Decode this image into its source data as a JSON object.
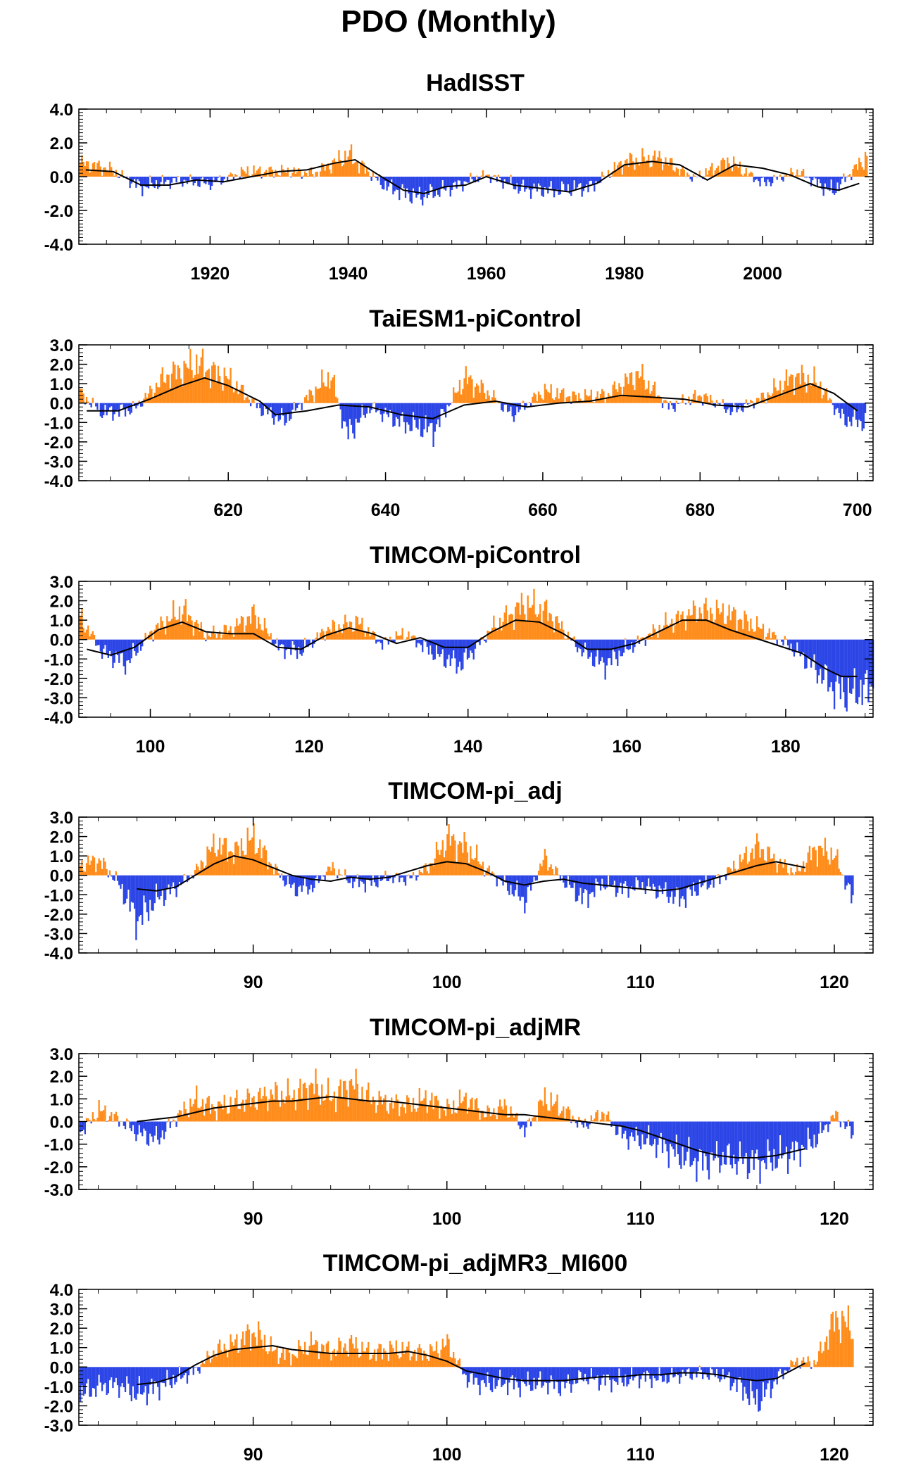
{
  "title": "PDO (Monthly)",
  "colors": {
    "positive": "#ff8c1a",
    "negative": "#2b45e6",
    "smooth": "#000000"
  },
  "chart_data": [
    {
      "type": "area",
      "title": "HadISST",
      "xlim": [
        1901,
        2016
      ],
      "xticks": [
        1920,
        1940,
        1960,
        1980,
        2000
      ],
      "yticks": [
        "4.0",
        "2.0",
        "0.0",
        "-2.0",
        "-4.0"
      ],
      "ylim": [
        -4,
        4
      ],
      "series": [
        {
          "values_x": [
            1901,
            1905,
            1910,
            1915,
            1920,
            1925,
            1930,
            1935,
            1940,
            1945,
            1950,
            1955,
            1960,
            1965,
            1970,
            1975,
            1980,
            1985,
            1990,
            1995,
            2000,
            2005,
            2010,
            2015
          ],
          "values_y": [
            0.8,
            0.5,
            -0.6,
            -0.2,
            -0.4,
            0.3,
            0.3,
            0.2,
            1.3,
            -0.5,
            -1.2,
            -0.6,
            0.1,
            -0.7,
            -0.8,
            -0.6,
            0.9,
            1.1,
            -0.1,
            0.9,
            -0.4,
            0.3,
            -0.9,
            1.2
          ]
        },
        {
          "values_x": [
            1902,
            1906,
            1910,
            1914,
            1918,
            1922,
            1926,
            1930,
            1934,
            1938,
            1941,
            1944,
            1948,
            1951,
            1954,
            1957,
            1960,
            1964,
            1968,
            1972,
            1976,
            1980,
            1984,
            1988,
            1992,
            1996,
            2000,
            2004,
            2008,
            2011,
            2014
          ],
          "values_y": [
            0.4,
            0.3,
            -0.5,
            -0.5,
            -0.2,
            -0.3,
            0.0,
            0.3,
            0.4,
            0.8,
            1.0,
            0.2,
            -0.8,
            -1.0,
            -0.6,
            -0.5,
            0.0,
            -0.5,
            -0.7,
            -0.9,
            -0.4,
            0.7,
            0.9,
            0.7,
            -0.2,
            0.7,
            0.5,
            0.1,
            -0.6,
            -0.8,
            -0.4
          ]
        }
      ]
    },
    {
      "type": "area",
      "title": "TaiESM1-piControl",
      "xlim": [
        601,
        702
      ],
      "xticks": [
        620,
        640,
        660,
        680,
        700
      ],
      "yticks": [
        "3.0",
        "2.0",
        "1.0",
        "0.0",
        "-1.0",
        "-2.0",
        "-3.0",
        "-4.0"
      ],
      "ylim": [
        -4,
        3
      ],
      "series": [
        {
          "values_x": [
            601,
            604,
            608,
            612,
            616,
            620,
            624,
            627,
            630,
            633,
            635,
            638,
            642,
            646,
            650,
            653,
            656,
            660,
            664,
            668,
            672,
            676,
            680,
            684,
            688,
            692,
            695,
            698,
            701
          ],
          "values_y": [
            0.5,
            -0.5,
            -0.3,
            1.4,
            2.0,
            1.2,
            -0.3,
            -0.9,
            0.3,
            1.4,
            -1.6,
            -0.2,
            -1.0,
            -1.4,
            1.3,
            0.5,
            -0.6,
            0.6,
            0.3,
            0.4,
            1.5,
            -0.2,
            0.4,
            -0.4,
            0.3,
            1.4,
            1.0,
            -0.8,
            -1.0
          ]
        },
        {
          "values_x": [
            602,
            606,
            610,
            614,
            617,
            620,
            624,
            626,
            630,
            634,
            638,
            642,
            646,
            650,
            654,
            658,
            662,
            666,
            670,
            674,
            678,
            682,
            686,
            690,
            694,
            697,
            700
          ],
          "values_y": [
            -0.4,
            -0.4,
            0.2,
            0.9,
            1.3,
            0.9,
            0.1,
            -0.6,
            -0.4,
            -0.1,
            -0.2,
            -0.6,
            -0.8,
            -0.1,
            0.1,
            -0.2,
            0.0,
            0.1,
            0.4,
            0.3,
            0.2,
            -0.1,
            -0.2,
            0.4,
            1.0,
            0.5,
            -0.4
          ]
        }
      ]
    },
    {
      "type": "area",
      "title": "TIMCOM-piControl",
      "xlim": [
        91,
        191
      ],
      "xticks": [
        100,
        120,
        140,
        160,
        180
      ],
      "yticks": [
        "3.0",
        "2.0",
        "1.0",
        "0.0",
        "-1.0",
        "-2.0",
        "-3.0",
        "-4.0"
      ],
      "ylim": [
        -4,
        3
      ],
      "series": [
        {
          "values_x": [
            91,
            94,
            97,
            100,
            104,
            107,
            110,
            113,
            116,
            119,
            122,
            126,
            129,
            132,
            136,
            139,
            143,
            147,
            150,
            154,
            157,
            161,
            165,
            169,
            173,
            177,
            180,
            183,
            186,
            188,
            191
          ],
          "values_y": [
            1.2,
            -0.7,
            -1.2,
            0.4,
            1.5,
            0.2,
            0.5,
            1.3,
            -0.4,
            -0.6,
            0.5,
            0.9,
            -0.2,
            0.3,
            -0.8,
            -1.3,
            0.6,
            1.8,
            1.4,
            -0.5,
            -1.3,
            -0.2,
            0.8,
            1.5,
            1.3,
            0.5,
            -0.2,
            -1.2,
            -2.5,
            -2.8,
            -2.3
          ]
        },
        {
          "values_x": [
            92,
            95,
            98,
            101,
            104,
            107,
            110,
            113,
            116,
            119,
            122,
            125,
            128,
            131,
            134,
            137,
            140,
            143,
            146,
            149,
            152,
            155,
            158,
            161,
            164,
            167,
            170,
            173,
            176,
            179,
            182,
            185,
            187,
            189
          ],
          "values_y": [
            -0.5,
            -0.8,
            -0.4,
            0.5,
            0.9,
            0.4,
            0.3,
            0.3,
            -0.4,
            -0.5,
            0.2,
            0.6,
            0.3,
            -0.2,
            0.1,
            -0.4,
            -0.4,
            0.4,
            1.0,
            0.9,
            0.3,
            -0.5,
            -0.5,
            -0.2,
            0.4,
            1.0,
            1.0,
            0.5,
            0.1,
            -0.3,
            -0.7,
            -1.5,
            -1.9,
            -1.9
          ]
        }
      ]
    },
    {
      "type": "area",
      "title": "TIMCOM-pi_adj",
      "xlim": [
        81,
        122
      ],
      "xticks": [
        90,
        100,
        110,
        120
      ],
      "yticks": [
        "3.0",
        "2.0",
        "1.0",
        "0.0",
        "-1.0",
        "-2.0",
        "-3.0",
        "-4.0"
      ],
      "ylim": [
        -4,
        3
      ],
      "series": [
        {
          "values_x": [
            81,
            82,
            83,
            84,
            85,
            86,
            87,
            88,
            89,
            90,
            91,
            92,
            93,
            94,
            95,
            96,
            97,
            98,
            99,
            100,
            101,
            102,
            103,
            104,
            105,
            106,
            107,
            108,
            109,
            110,
            111,
            112,
            113,
            114,
            115,
            116,
            117,
            118,
            119,
            120,
            121
          ],
          "values_y": [
            0.5,
            0.8,
            -0.4,
            -2.3,
            -1.2,
            -0.6,
            0.2,
            1.6,
            1.2,
            1.9,
            0.4,
            -0.7,
            -0.6,
            0.4,
            -0.3,
            -0.4,
            -0.1,
            -0.2,
            0.4,
            1.9,
            1.4,
            0.3,
            -0.5,
            -1.3,
            0.9,
            -0.3,
            -1.2,
            -0.4,
            -0.7,
            -0.5,
            -0.8,
            -1.2,
            -0.6,
            -0.2,
            0.6,
            1.5,
            0.7,
            0.1,
            1.4,
            1.0,
            -1.5
          ]
        },
        {
          "values_x": [
            84,
            85,
            86,
            87,
            88,
            89,
            90,
            91,
            92,
            93,
            94,
            95,
            96,
            97,
            98,
            99,
            100,
            101,
            102,
            103,
            104,
            105,
            106,
            107,
            108,
            109,
            110,
            111,
            112,
            113,
            114,
            115,
            116,
            117,
            118.5
          ],
          "values_y": [
            -0.7,
            -0.8,
            -0.6,
            0.0,
            0.6,
            1.0,
            0.8,
            0.4,
            0.0,
            -0.2,
            -0.3,
            -0.1,
            -0.2,
            -0.1,
            0.2,
            0.5,
            0.7,
            0.6,
            0.2,
            -0.3,
            -0.5,
            -0.3,
            -0.2,
            -0.4,
            -0.5,
            -0.6,
            -0.7,
            -0.8,
            -0.7,
            -0.4,
            -0.1,
            0.2,
            0.5,
            0.7,
            0.4
          ]
        }
      ]
    },
    {
      "type": "area",
      "title": "TIMCOM-pi_adjMR",
      "xlim": [
        81,
        122
      ],
      "xticks": [
        90,
        100,
        110,
        120
      ],
      "yticks": [
        "3.0",
        "2.0",
        "1.0",
        "0.0",
        "-1.0",
        "-2.0",
        "-3.0"
      ],
      "ylim": [
        -3,
        3
      ],
      "series": [
        {
          "values_x": [
            81,
            82,
            83,
            84,
            85,
            86,
            87,
            88,
            89,
            90,
            91,
            92,
            93,
            94,
            95,
            96,
            97,
            98,
            99,
            100,
            101,
            102,
            103,
            104,
            105,
            106,
            107,
            108,
            109,
            110,
            111,
            112,
            113,
            114,
            115,
            116,
            117,
            118,
            119,
            120,
            121
          ],
          "values_y": [
            -0.5,
            0.5,
            0.1,
            -0.5,
            -0.8,
            0.2,
            0.9,
            0.6,
            0.8,
            1.0,
            1.2,
            1.1,
            1.6,
            1.0,
            1.7,
            1.0,
            0.8,
            0.7,
            1.0,
            0.5,
            1.0,
            0.3,
            0.7,
            -0.4,
            1.0,
            0.5,
            -0.2,
            0.4,
            -0.6,
            -0.8,
            -1.0,
            -1.5,
            -1.8,
            -1.6,
            -1.7,
            -1.8,
            -1.6,
            -1.3,
            -0.8,
            0.3,
            -0.6
          ]
        },
        {
          "values_x": [
            84,
            85,
            86,
            87,
            88,
            89,
            90,
            91,
            92,
            93,
            94,
            95,
            96,
            97,
            98,
            99,
            100,
            101,
            102,
            103,
            104,
            105,
            106,
            107,
            108,
            109,
            110,
            111,
            112,
            113,
            114,
            115,
            116,
            117,
            118.5
          ],
          "values_y": [
            0.0,
            0.1,
            0.2,
            0.4,
            0.6,
            0.7,
            0.8,
            0.9,
            0.9,
            1.0,
            1.1,
            1.0,
            0.9,
            0.9,
            0.8,
            0.7,
            0.6,
            0.5,
            0.4,
            0.3,
            0.3,
            0.2,
            0.1,
            0.0,
            -0.1,
            -0.2,
            -0.4,
            -0.7,
            -1.0,
            -1.3,
            -1.5,
            -1.6,
            -1.6,
            -1.5,
            -1.2
          ]
        }
      ]
    },
    {
      "type": "area",
      "title": "TIMCOM-pi_adjMR3_MI600",
      "xlim": [
        81,
        122
      ],
      "xticks": [
        90,
        100,
        110,
        120
      ],
      "yticks": [
        "4.0",
        "3.0",
        "2.0",
        "1.0",
        "0.0",
        "-1.0",
        "-2.0",
        "-3.0"
      ],
      "ylim": [
        -3,
        4
      ],
      "series": [
        {
          "values_x": [
            81,
            82,
            83,
            84,
            85,
            86,
            87,
            88,
            89,
            90,
            91,
            92,
            93,
            94,
            95,
            96,
            97,
            98,
            99,
            100,
            101,
            102,
            103,
            104,
            105,
            106,
            107,
            108,
            109,
            110,
            111,
            112,
            113,
            114,
            115,
            116,
            117,
            118,
            119,
            120,
            121
          ],
          "values_y": [
            -1.4,
            -1.0,
            -0.9,
            -1.4,
            -1.0,
            -0.6,
            -0.2,
            0.8,
            1.2,
            1.8,
            0.8,
            0.6,
            1.2,
            0.8,
            1.2,
            0.7,
            0.9,
            0.8,
            0.7,
            1.2,
            -0.6,
            -0.9,
            -0.8,
            -0.9,
            -0.8,
            -1.0,
            -0.5,
            -0.7,
            -0.7,
            -0.5,
            -0.6,
            -0.4,
            -0.3,
            -0.4,
            -0.9,
            -1.8,
            -0.6,
            0.3,
            0.2,
            2.5,
            2.0
          ]
        },
        {
          "values_x": [
            84,
            85,
            86,
            87,
            88,
            89,
            90,
            91,
            92,
            93,
            94,
            95,
            96,
            97,
            98,
            99,
            100,
            101,
            102,
            103,
            104,
            105,
            106,
            107,
            108,
            109,
            110,
            111,
            112,
            113,
            114,
            115,
            116,
            117,
            118.5
          ],
          "values_y": [
            -0.9,
            -0.8,
            -0.5,
            0.1,
            0.6,
            0.9,
            1.0,
            1.1,
            0.9,
            0.8,
            0.7,
            0.7,
            0.7,
            0.7,
            0.8,
            0.6,
            0.3,
            -0.2,
            -0.4,
            -0.6,
            -0.7,
            -0.7,
            -0.7,
            -0.6,
            -0.5,
            -0.5,
            -0.4,
            -0.4,
            -0.3,
            -0.3,
            -0.4,
            -0.6,
            -0.7,
            -0.6,
            0.2
          ]
        }
      ]
    }
  ]
}
